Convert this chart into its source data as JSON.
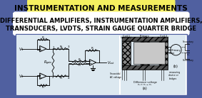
{
  "bg_color": "#5060a0",
  "title_box_color": "#f5f060",
  "title_text": "INSTRUMENTATION AND MEASUREMENTS",
  "subtitle_line1": "DIFFERENTIAL AMPLIFIERS, INSTRUMENTATION AMPLIFIERS,",
  "subtitle_line2": "TRANSDUCERS, LVDTS, STRAIN GAUGE QUARTER BRIDGE",
  "title_fontsize": 7.5,
  "subtitle_fontsize": 6.0,
  "white_box_color": "#ffffff",
  "diagram_bg": "#dce8f0",
  "panel_border": "#5060a0"
}
